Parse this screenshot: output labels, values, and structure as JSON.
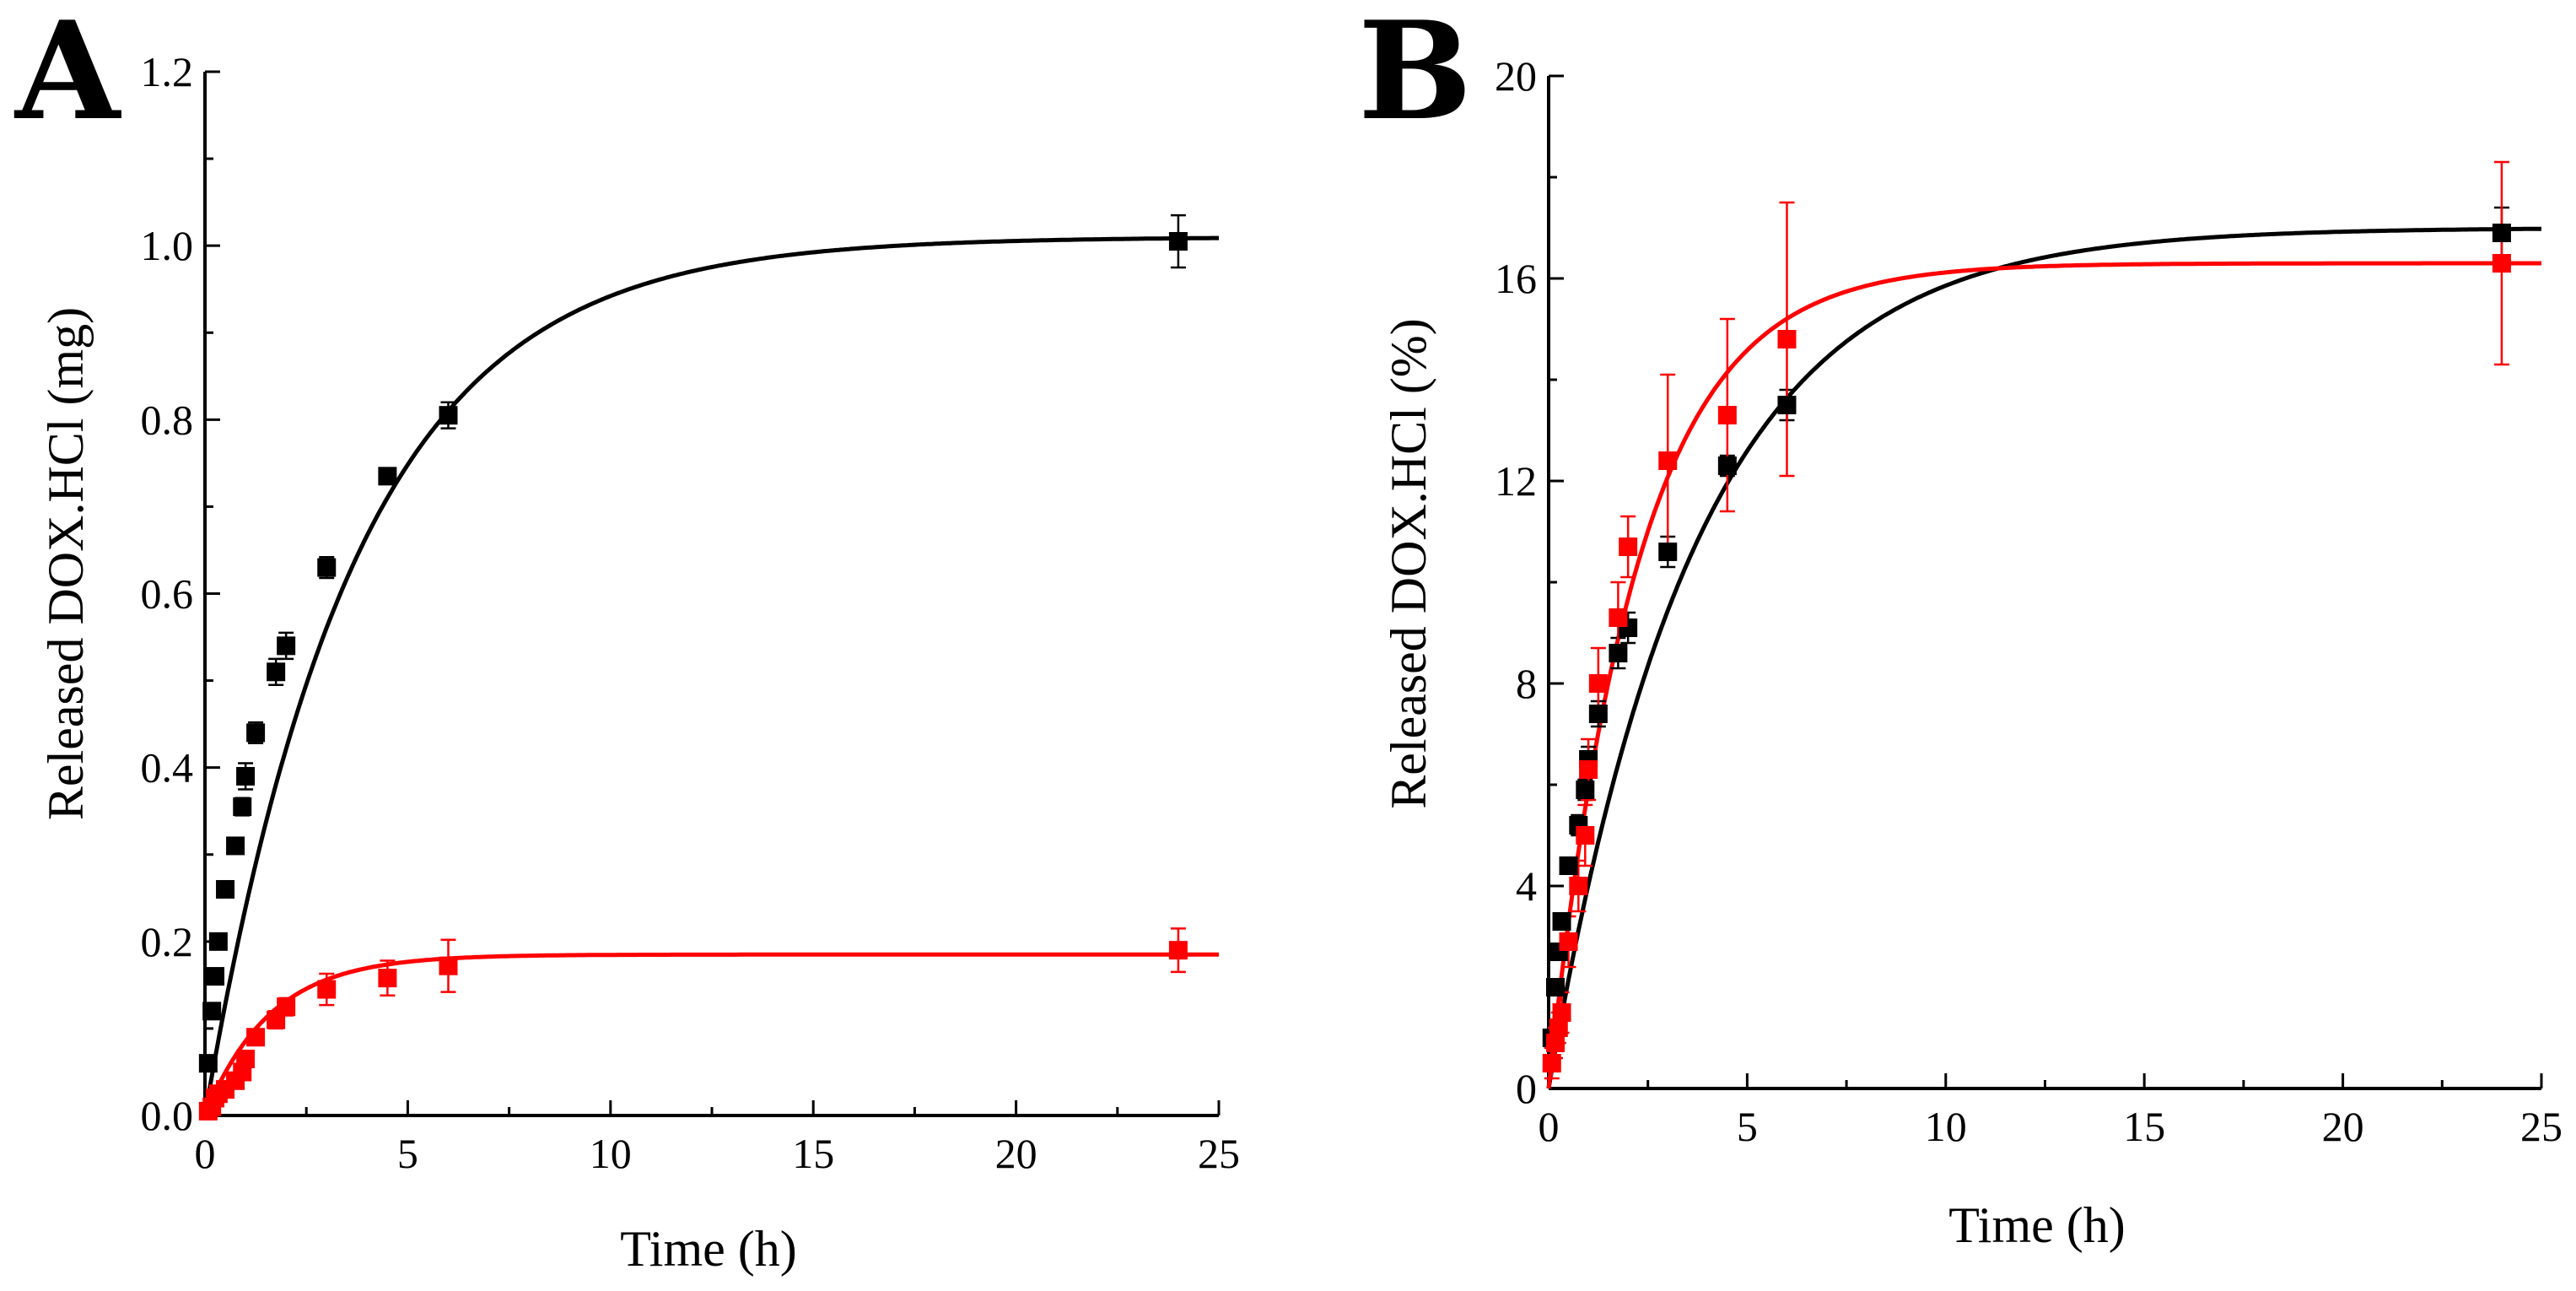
{
  "chart_data": [
    {
      "panel": "A",
      "type": "scatter",
      "xlabel": "Time (h)",
      "ylabel": "Released DOX.HCl (mg)",
      "xlim": [
        0,
        25
      ],
      "ylim": [
        0,
        1.2
      ],
      "xticks": [
        0,
        5,
        10,
        15,
        20,
        25
      ],
      "yticks": [
        0.0,
        0.2,
        0.4,
        0.6,
        0.8,
        1.0,
        1.2
      ],
      "ytick_labels": [
        "0.0",
        "0.2",
        "0.4",
        "0.6",
        "0.8",
        "1.0",
        "1.2"
      ],
      "grid": false,
      "legend": "none",
      "series": [
        {
          "color": "#000000",
          "x": [
            0.08,
            0.17,
            0.25,
            0.33,
            0.5,
            0.75,
            0.92,
            1.0,
            1.25,
            1.75,
            2.0,
            3.0,
            4.5,
            6.0,
            24.0
          ],
          "y": [
            0.06,
            0.12,
            0.16,
            0.2,
            0.26,
            0.31,
            0.355,
            0.39,
            0.44,
            0.51,
            0.54,
            0.63,
            0.735,
            0.805,
            1.005
          ],
          "err": [
            0.005,
            0.005,
            0.005,
            0.006,
            0.006,
            0.008,
            0.01,
            0.015,
            0.012,
            0.015,
            0.015,
            0.012,
            0.008,
            0.015,
            0.03
          ],
          "fit": {
            "model": "first-order",
            "ymax": 1.01,
            "k": 0.27
          }
        },
        {
          "color": "#ff0000",
          "x": [
            0.08,
            0.17,
            0.25,
            0.33,
            0.5,
            0.75,
            0.92,
            1.0,
            1.25,
            1.75,
            2.0,
            3.0,
            4.5,
            6.0,
            24.0
          ],
          "y": [
            0.005,
            0.01,
            0.02,
            0.025,
            0.03,
            0.04,
            0.05,
            0.065,
            0.09,
            0.11,
            0.125,
            0.145,
            0.158,
            0.172,
            0.19
          ],
          "err": [
            0.003,
            0.003,
            0.004,
            0.004,
            0.005,
            0.005,
            0.005,
            0.006,
            0.008,
            0.01,
            0.01,
            0.018,
            0.02,
            0.03,
            0.025
          ],
          "fit": {
            "model": "first-order",
            "ymax": 0.185,
            "k": 0.62
          }
        }
      ]
    },
    {
      "panel": "B",
      "type": "scatter",
      "xlabel": "Time (h)",
      "ylabel": "Released DOX.HCl (%)",
      "xlim": [
        0,
        25
      ],
      "ylim": [
        0,
        20
      ],
      "xticks": [
        0,
        5,
        10,
        15,
        20,
        25
      ],
      "yticks": [
        0,
        4,
        8,
        12,
        16,
        20
      ],
      "ytick_labels": [
        "0",
        "4",
        "8",
        "12",
        "16",
        "20"
      ],
      "grid": false,
      "legend": "none",
      "series": [
        {
          "color": "#000000",
          "x": [
            0.08,
            0.17,
            0.25,
            0.33,
            0.5,
            0.75,
            0.92,
            1.0,
            1.25,
            1.75,
            2.0,
            3.0,
            4.5,
            6.0,
            24.0
          ],
          "y": [
            1.0,
            2.0,
            2.7,
            3.3,
            4.4,
            5.2,
            5.9,
            6.5,
            7.4,
            8.6,
            9.1,
            10.6,
            12.3,
            13.5,
            16.9
          ],
          "err": [
            0.1,
            0.1,
            0.15,
            0.15,
            0.15,
            0.2,
            0.2,
            0.25,
            0.25,
            0.3,
            0.3,
            0.3,
            0.2,
            0.3,
            0.5
          ],
          "fit": {
            "model": "first-order",
            "ymax": 17.0,
            "k": 0.27
          }
        },
        {
          "color": "#ff0000",
          "x": [
            0.08,
            0.17,
            0.25,
            0.33,
            0.5,
            0.75,
            0.92,
            1.0,
            1.25,
            1.75,
            2.0,
            3.0,
            4.5,
            6.0,
            24.0
          ],
          "y": [
            0.5,
            0.9,
            1.2,
            1.5,
            2.9,
            4.0,
            5.0,
            6.3,
            8.0,
            9.3,
            10.7,
            12.4,
            13.3,
            14.8,
            16.3
          ],
          "err": [
            0.3,
            0.3,
            0.3,
            0.4,
            0.5,
            0.5,
            0.6,
            0.6,
            0.7,
            0.7,
            0.6,
            1.7,
            1.9,
            2.7,
            2.0
          ],
          "fit": {
            "model": "first-order",
            "ymax": 16.3,
            "k": 0.45
          }
        }
      ]
    }
  ]
}
